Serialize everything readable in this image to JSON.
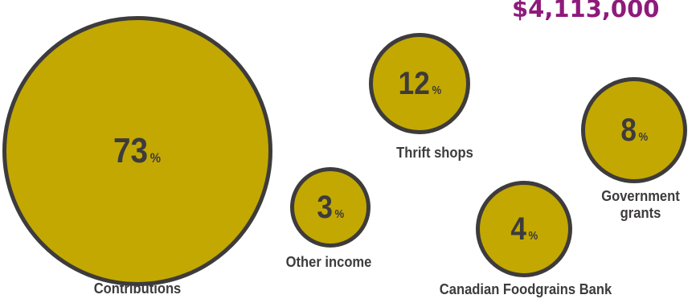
{
  "total_label": "$4,113,000",
  "colors": {
    "bubble_fill": "#c3a802",
    "bubble_border": "#3d3b3b",
    "text": "#3d3b3b",
    "total": "#8e1a7c"
  },
  "chart_data": {
    "type": "bubble",
    "unit": "%",
    "items": [
      {
        "label": "Contributions",
        "value": 73
      },
      {
        "label": "Thrift shops",
        "value": 12
      },
      {
        "label": "Government grants",
        "value": 8
      },
      {
        "label": "Canadian Foodgrains Bank",
        "value": 4
      },
      {
        "label": "Other income",
        "value": 3
      }
    ]
  }
}
